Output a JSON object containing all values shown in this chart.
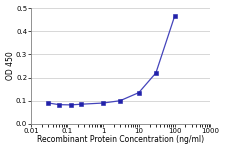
{
  "x": [
    0.03,
    0.06,
    0.125,
    0.25,
    1,
    3,
    10,
    30,
    100
  ],
  "y": [
    0.09,
    0.083,
    0.082,
    0.085,
    0.09,
    0.1,
    0.135,
    0.22,
    0.465
  ],
  "line_color": "#4444bb",
  "marker_color": "#2222aa",
  "marker": "s",
  "markersize": 2.5,
  "linewidth": 0.9,
  "xlabel": "Recombinant Protein Concentration (ng/ml)",
  "ylabel": "OD 450",
  "xlim": [
    0.01,
    1000
  ],
  "ylim": [
    0.0,
    0.5
  ],
  "yticks": [
    0.0,
    0.1,
    0.2,
    0.3,
    0.4,
    0.5
  ],
  "xticks": [
    0.01,
    0.1,
    1,
    10,
    100,
    1000
  ],
  "xtick_labels": [
    "0.01",
    "0.1",
    "1",
    "10",
    "100",
    "1000"
  ],
  "xlabel_fontsize": 5.5,
  "ylabel_fontsize": 5.5,
  "tick_fontsize": 5.0,
  "bg_color": "#ffffff",
  "plot_bg": "#ffffff",
  "grid_color": "#c8c8c8"
}
